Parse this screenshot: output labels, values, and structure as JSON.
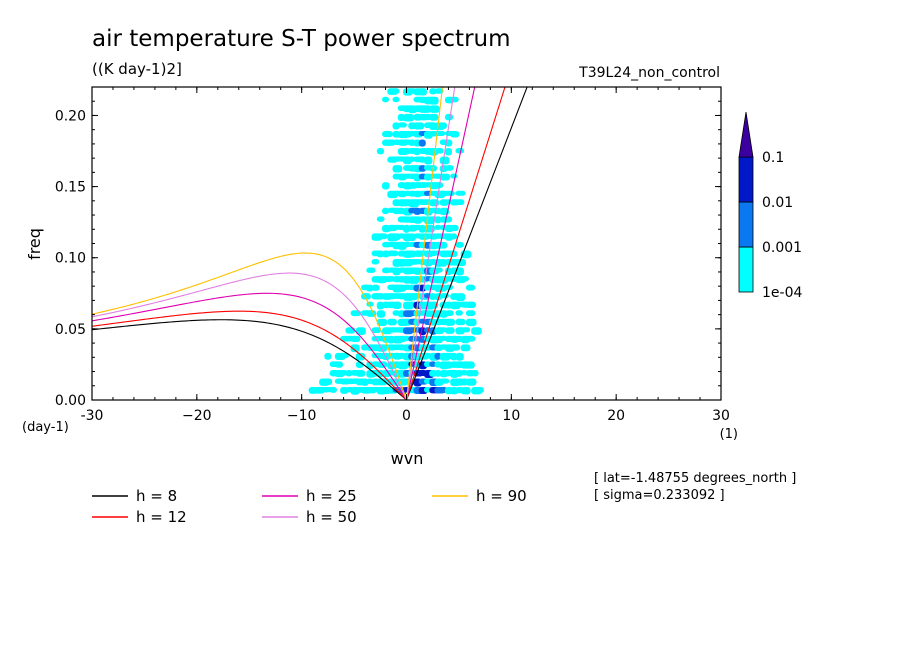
{
  "chart_data": {
    "type": "heatmap",
    "title": "air temperature S-T power spectrum",
    "units": "((K day-1)2]",
    "run_name": "T39L24_non_control",
    "xlabel": "wvn",
    "ylabel": "freq",
    "x_unit": "(1)",
    "y_unit": "(day-1)",
    "xlim": [
      -30,
      30
    ],
    "ylim": [
      0,
      0.22
    ],
    "x_ticks": [
      -30,
      -20,
      -10,
      0,
      10,
      20,
      30
    ],
    "y_ticks": [
      0.0,
      0.05,
      0.1,
      0.15,
      0.2
    ],
    "x_tick_labels": [
      "-30",
      "−20",
      "−10",
      "0",
      "10",
      "20",
      "30"
    ],
    "y_tick_labels": [
      "0.00",
      "0.05",
      "0.10",
      "0.15",
      "0.20"
    ],
    "colorbar": {
      "levels": [
        "1e-04",
        "0.001",
        "0.01",
        "0.1"
      ],
      "colors": [
        "#00ffff",
        "#0a78f0",
        "#0018c8",
        "#3c00a0"
      ]
    },
    "dispersion_curves": [
      {
        "name": "h =  8",
        "h": 8,
        "color": "#000000"
      },
      {
        "name": "h = 12",
        "h": 12,
        "color": "#ff0000"
      },
      {
        "name": "h = 25",
        "h": 25,
        "color": "#e000b0"
      },
      {
        "name": "h = 50",
        "h": 50,
        "color": "#e080e0"
      },
      {
        "name": "h = 90",
        "h": 90,
        "color": "#ffc000"
      }
    ],
    "info": [
      "[ lat=-1.48755 degrees_north ]",
      "[ sigma=0.233092 ]"
    ]
  }
}
